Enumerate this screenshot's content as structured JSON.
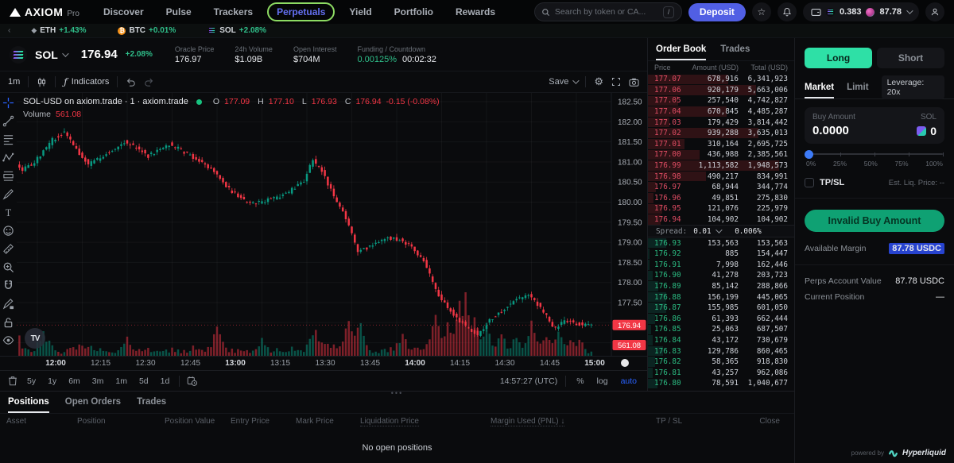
{
  "topnav": {
    "brand": {
      "name": "AXIOM",
      "suffix": "Pro"
    },
    "items": [
      {
        "label": "Discover",
        "active": false,
        "annotated": false
      },
      {
        "label": "Pulse",
        "active": false,
        "annotated": false
      },
      {
        "label": "Trackers",
        "active": false,
        "annotated": false
      },
      {
        "label": "Perpetuals",
        "active": true,
        "annotated": true
      },
      {
        "label": "Yield",
        "active": false,
        "annotated": false
      },
      {
        "label": "Portfolio",
        "active": false,
        "annotated": false
      },
      {
        "label": "Rewards",
        "active": false,
        "annotated": false
      }
    ],
    "search": {
      "placeholder": "Search by token or CA...",
      "shortcut": "/"
    },
    "deposit_label": "Deposit",
    "wallet": {
      "sol_balance": "0.383",
      "usd_balance": "87.78"
    }
  },
  "ticker": [
    {
      "symbol": "ETH",
      "change": "+1.43%",
      "icon": "eth-icon"
    },
    {
      "symbol": "BTC",
      "change": "+0.01%",
      "icon": "btc-icon"
    },
    {
      "symbol": "SOL",
      "change": "+2.08%",
      "icon": "sol-icon"
    }
  ],
  "market_header": {
    "symbol": "SOL",
    "price": "176.94",
    "change": "+2.08%",
    "stats": [
      {
        "label": "Oracle Price",
        "value": "176.97"
      },
      {
        "label": "24h Volume",
        "value": "$1.09B"
      },
      {
        "label": "Open Interest",
        "value": "$704M"
      },
      {
        "label": "Funding / Countdown",
        "value": "0.00125%",
        "value_green": true,
        "value2": "00:02:32"
      }
    ]
  },
  "chart_toolbar": {
    "interval": "1m",
    "indicators_label": "Indicators",
    "save_label": "Save"
  },
  "chart": {
    "legend_title": "SOL-USD on axiom.trade · 1 · axiom.trade",
    "volume_label": "Volume",
    "volume_value": "561.08",
    "price_tag": "176.94",
    "volume_tag": "561.08"
  },
  "chart_data": {
    "type": "candlestick",
    "symbol": "SOL-USD",
    "interval": "1m",
    "title": "SOL-USD on axiom.trade · 1 · axiom.trade",
    "ohlc_legend": {
      "o": "177.09",
      "h": "177.10",
      "l": "176.93",
      "c": "176.94",
      "change": "-0.15 (-0.08%)"
    },
    "last_price": 176.94,
    "current_volume": 561.08,
    "ylim": [
      176.4,
      182.72
    ],
    "y_ticks": [
      "182.50",
      "182.00",
      "181.50",
      "181.00",
      "180.50",
      "180.00",
      "179.50",
      "179.00",
      "178.50",
      "178.00",
      "177.50",
      "177.00",
      "176.50"
    ],
    "x_ticks": [
      "12:00",
      "12:15",
      "12:30",
      "12:45",
      "13:00",
      "13:15",
      "13:30",
      "13:45",
      "14:00",
      "14:15",
      "14:30",
      "14:45",
      "15:00"
    ],
    "grid": true,
    "colors": {
      "up": "#089981",
      "down": "#f23645"
    },
    "price_keypoints": [
      [
        -13,
        180.6
      ],
      [
        -8,
        181.05
      ],
      [
        -4,
        180.8
      ],
      [
        0,
        181.0
      ],
      [
        6,
        181.55
      ],
      [
        10,
        181.75
      ],
      [
        14,
        181.3
      ],
      [
        18,
        180.95
      ],
      [
        24,
        181.2
      ],
      [
        30,
        181.5
      ],
      [
        34,
        181.35
      ],
      [
        38,
        181.15
      ],
      [
        45,
        181.45
      ],
      [
        50,
        181.25
      ],
      [
        55,
        181.0
      ],
      [
        60,
        180.75
      ],
      [
        66,
        180.25
      ],
      [
        72,
        179.95
      ],
      [
        78,
        180.05
      ],
      [
        84,
        180.2
      ],
      [
        90,
        180.55
      ],
      [
        93,
        181.05
      ],
      [
        96,
        180.75
      ],
      [
        100,
        180.15
      ],
      [
        104,
        179.6
      ],
      [
        108,
        178.75
      ],
      [
        113,
        178.95
      ],
      [
        118,
        179.1
      ],
      [
        122,
        179.05
      ],
      [
        126,
        178.9
      ],
      [
        130,
        178.55
      ],
      [
        133,
        178.0
      ],
      [
        136,
        177.55
      ],
      [
        140,
        177.2
      ],
      [
        144,
        176.9
      ],
      [
        148,
        176.72
      ],
      [
        152,
        177.05
      ],
      [
        156,
        177.3
      ],
      [
        160,
        177.55
      ],
      [
        165,
        177.7
      ],
      [
        168,
        177.45
      ],
      [
        171,
        177.15
      ],
      [
        174,
        176.85
      ],
      [
        177,
        177.05
      ],
      [
        180,
        177.0
      ],
      [
        183,
        176.94
      ],
      [
        186,
        176.94
      ]
    ],
    "volume_spikes": [
      [
        -8,
        76
      ],
      [
        2,
        18
      ],
      [
        30,
        14
      ],
      [
        60,
        26
      ],
      [
        75,
        14
      ],
      [
        93,
        22
      ],
      [
        104,
        30
      ],
      [
        108,
        34
      ],
      [
        122,
        20
      ],
      [
        133,
        38
      ],
      [
        137,
        30
      ],
      [
        141,
        60
      ],
      [
        143,
        72
      ],
      [
        146,
        40
      ],
      [
        150,
        30
      ],
      [
        155,
        22
      ],
      [
        160,
        18
      ],
      [
        165,
        34
      ],
      [
        170,
        16
      ],
      [
        174,
        24
      ],
      [
        178,
        14
      ],
      [
        181,
        12
      ]
    ]
  },
  "timeframes": [
    "5y",
    "1y",
    "6m",
    "3m",
    "1m",
    "5d",
    "1d"
  ],
  "chart_footer": {
    "time": "14:57:27 (UTC)",
    "percent": "%",
    "log": "log",
    "auto": "auto"
  },
  "orderbook": {
    "tabs": [
      "Order Book",
      "Trades"
    ],
    "columns": [
      "Price",
      "Amount (USD)",
      "Total (USD)"
    ],
    "asks": [
      [
        "177.07",
        "678,916",
        "6,341,923"
      ],
      [
        "177.06",
        "920,179",
        "5,663,006"
      ],
      [
        "177.05",
        "257,540",
        "4,742,827"
      ],
      [
        "177.04",
        "670,845",
        "4,485,287"
      ],
      [
        "177.03",
        "179,429",
        "3,814,442"
      ],
      [
        "177.02",
        "939,288",
        "3,635,013"
      ],
      [
        "177.01",
        "310,164",
        "2,695,725"
      ],
      [
        "177.00",
        "436,988",
        "2,385,561"
      ],
      [
        "176.99",
        "1,113,582",
        "1,948,573"
      ],
      [
        "176.98",
        "490,217",
        "834,991"
      ],
      [
        "176.97",
        "68,944",
        "344,774"
      ],
      [
        "176.96",
        "49,851",
        "275,830"
      ],
      [
        "176.95",
        "121,076",
        "225,979"
      ],
      [
        "176.94",
        "104,902",
        "104,902"
      ]
    ],
    "spread": {
      "label": "Spread:",
      "value": "0.01",
      "pct": "0.006%"
    },
    "bids": [
      [
        "176.93",
        "153,563",
        "153,563"
      ],
      [
        "176.92",
        "885",
        "154,447"
      ],
      [
        "176.91",
        "7,998",
        "162,446"
      ],
      [
        "176.90",
        "41,278",
        "203,723"
      ],
      [
        "176.89",
        "85,142",
        "288,866"
      ],
      [
        "176.88",
        "156,199",
        "445,065"
      ],
      [
        "176.87",
        "155,985",
        "601,050"
      ],
      [
        "176.86",
        "61,393",
        "662,444"
      ],
      [
        "176.85",
        "25,063",
        "687,507"
      ],
      [
        "176.84",
        "43,172",
        "730,679"
      ],
      [
        "176.83",
        "129,786",
        "860,465"
      ],
      [
        "176.82",
        "58,365",
        "918,830"
      ],
      [
        "176.81",
        "43,257",
        "962,086"
      ],
      [
        "176.80",
        "78,591",
        "1,040,677"
      ]
    ]
  },
  "trade_panel": {
    "long_label": "Long",
    "short_label": "Short",
    "tabs": [
      "Market",
      "Limit"
    ],
    "leverage": "Leverage: 20x",
    "buy_amount": {
      "label": "Buy Amount",
      "unit": "SOL",
      "value": "0.0000",
      "alt_value": "0"
    },
    "slider_labels": [
      "0%",
      "25%",
      "50%",
      "75%",
      "100%"
    ],
    "tpsl_label": "TP/SL",
    "est_liq": "Est. Liq. Price: --",
    "submit_label": "Invalid Buy Amount",
    "rows": [
      {
        "label": "Available Margin",
        "value": "87.78 USDC",
        "highlight": true
      },
      {
        "label": "Perps Account Value",
        "value": "87.78 USDC",
        "highlight": false
      },
      {
        "label": "Current Position",
        "value": "—",
        "highlight": false
      }
    ],
    "powered_by": "powered by",
    "powered_brand": "Hyperliquid"
  },
  "positions_panel": {
    "tabs": [
      "Positions",
      "Open Orders",
      "Trades"
    ],
    "columns": [
      "Asset",
      "Position",
      "Position Value",
      "Entry Price",
      "Mark Price",
      "Liquidation Price",
      "Margin Used (PNL) ↓",
      "TP / SL",
      "Close"
    ],
    "empty_message": "No open positions"
  },
  "draw_tools": [
    "crosshair",
    "trend-line",
    "fib-retracement",
    "xabcd-pattern",
    "long-position",
    "brush",
    "text",
    "emoji",
    "ruler",
    "zoom-in",
    "magnet",
    "draw-lock",
    "lock",
    "hide"
  ]
}
